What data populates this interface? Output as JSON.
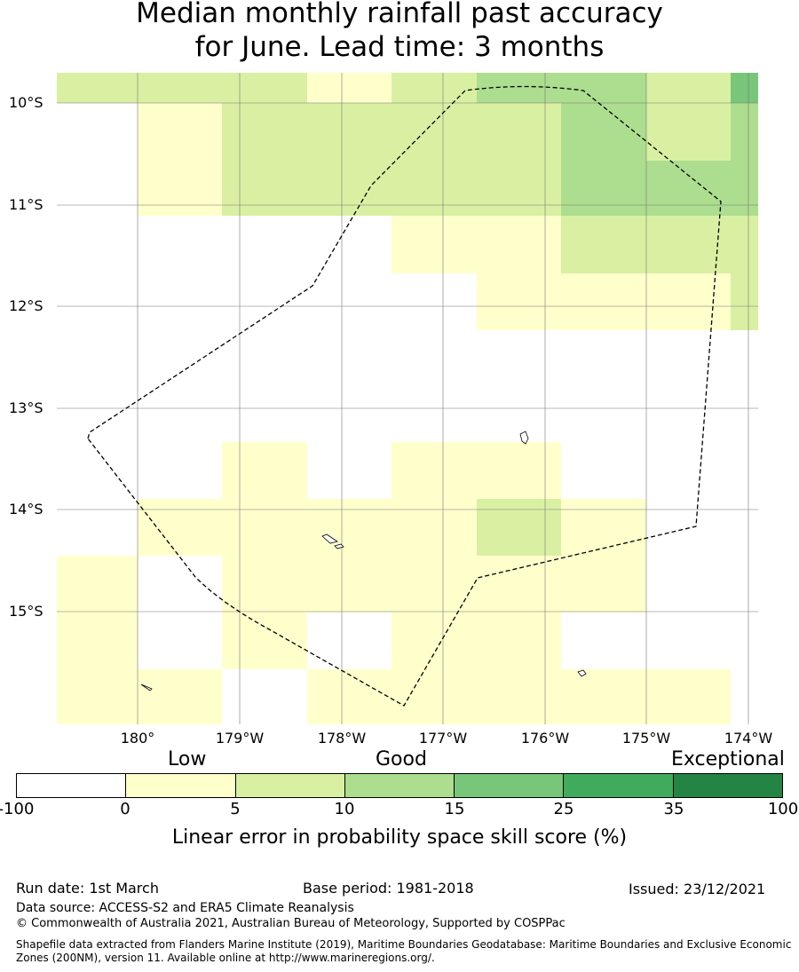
{
  "title_line1": "Median monthly rainfall past accuracy",
  "title_line2": "for June. Lead time: 3 months",
  "map": {
    "lat_labels": [
      "10°S",
      "11°S",
      "12°S",
      "13°S",
      "14°S",
      "15°S"
    ],
    "lon_labels": [
      "180°",
      "179°W",
      "178°W",
      "177°W",
      "176°W",
      "175°W",
      "174°W"
    ]
  },
  "legend": {
    "categories": [
      "Low",
      "Good",
      "Exceptional"
    ],
    "ticks": [
      "-100",
      "0",
      "5",
      "10",
      "15",
      "25",
      "35",
      "100"
    ],
    "colors": [
      "#ffffff",
      "#ffffcc",
      "#d9f0a3",
      "#addd8e",
      "#78c679",
      "#41ab5d",
      "#238443"
    ],
    "label": "Linear error in probability space skill score (%)"
  },
  "footer": {
    "run_date": "Run date: 1st March",
    "base_period": "Base period: 1981-2018",
    "issued": "Issued: 23/12/2021",
    "data_source": "Data source: ACCESS-S2 and ERA5 Climate Reanalysis",
    "copyright": "© Commonwealth of Australia 2021, Australian Bureau of Meteorology, Supported by COSPPac",
    "shapefile_1": "Shapefile data extracted from Flanders Marine Institute (2019), Maritime Boundaries Geodatabase: Maritime Boundaries and Exclusive Economic",
    "shapefile_2": "Zones (200NM), version 11. Available online at http://www.marineregions.org/."
  }
}
